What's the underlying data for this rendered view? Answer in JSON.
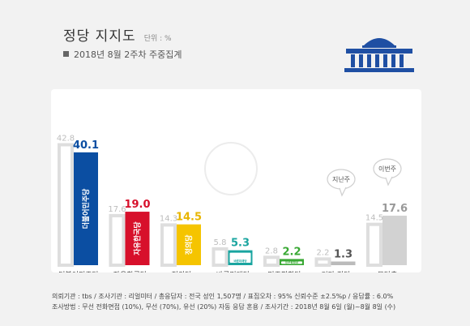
{
  "header": {
    "title": "정당 지지도",
    "unit": "단위 : %",
    "subtitle": "2018년 8월 2주차 주중집계"
  },
  "footer": {
    "line1": "의뢰기관 : tbs / 조사기관 : 리얼미터 / 총응답자 : 전국 성인 1,507명 / 표집오차 : 95% 신뢰수준 ±2.5%p / 응답률 : 6.0%",
    "line2": "조사방법 : 무선 전화면접 (10%), 무선 (70%), 유선 (20%) 자동 응답 혼용 / 조사기간 : 2018년 8월 6일 (월)~8월 8일 (수)"
  },
  "colors": {
    "previous": "#dedede",
    "other": "#d2d2d2"
  },
  "chart_data": {
    "type": "bar",
    "categories": [
      "더불어민주당",
      "자유한국당",
      "정의당",
      "바른미래당",
      "민주평화당",
      "기타 정당",
      "무당층"
    ],
    "series": [
      {
        "values": [
          42.8,
          17.6,
          14.3,
          5.8,
          2.8,
          2.2,
          14.5
        ]
      },
      {
        "values": [
          40.1,
          19.0,
          14.5,
          5.3,
          2.2,
          1.3,
          17.6
        ]
      }
    ],
    "bar_colors": [
      "#0b4ea2",
      "#d7102b",
      "#f5c400",
      "#1aa5a0",
      "#3aa935",
      "#bbbbbb",
      "#d2d2d2"
    ],
    "value_colors": [
      "#0b4ea2",
      "#d7102b",
      "#e8b500",
      "#1aa5a0",
      "#3aa935",
      "#555555",
      "#999999"
    ],
    "bubbles": [
      "지난주",
      "이번주"
    ],
    "party_logos": [
      "더불어민주당",
      "자유한국당",
      "정의당",
      "바른미래당",
      "민주평화당"
    ],
    "ylim": [
      0,
      45
    ],
    "grid": false
  }
}
